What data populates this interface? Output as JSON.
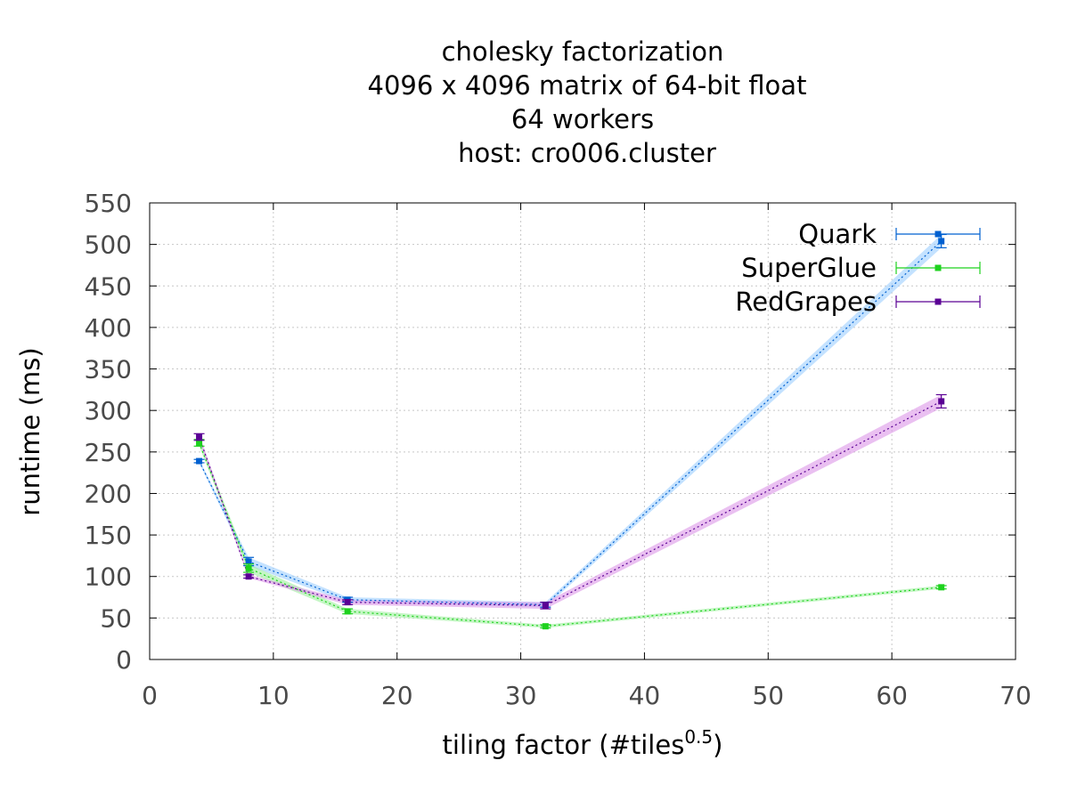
{
  "chart_data": {
    "type": "line",
    "title_lines": [
      "cholesky factorization",
      "4096 x 4096 matrix of 64-bit float",
      "64 workers",
      "host: cro006.cluster"
    ],
    "xlabel": "tiling factor (#tiles",
    "xlabel_superscript": "0.5",
    "xlabel_suffix": ")",
    "ylabel": "runtime (ms)",
    "xlim": [
      0,
      70
    ],
    "ylim": [
      0,
      550
    ],
    "xticks": [
      0,
      10,
      20,
      30,
      40,
      50,
      60,
      70
    ],
    "yticks": [
      0,
      50,
      100,
      150,
      200,
      250,
      300,
      350,
      400,
      450,
      500,
      550
    ],
    "grid": true,
    "legend_position": "top-right",
    "series": [
      {
        "name": "Quark",
        "color": "#0060d0",
        "band_color": "#9ccfff",
        "x": [
          4,
          8,
          16,
          32,
          64
        ],
        "y": [
          239,
          118,
          72,
          66,
          504
        ],
        "err": [
          2,
          5,
          3,
          3,
          8
        ]
      },
      {
        "name": "SuperGlue",
        "color": "#1ed21e",
        "band_color": "#9ff09f",
        "x": [
          4,
          8,
          16,
          32,
          64
        ],
        "y": [
          261,
          110,
          58,
          40,
          87
        ],
        "err": [
          4,
          5,
          3,
          2,
          2
        ]
      },
      {
        "name": "RedGrapes",
        "color": "#5a0094",
        "band_color": "#dc96e8",
        "x": [
          4,
          8,
          16,
          32,
          64
        ],
        "y": [
          268,
          100,
          69,
          65,
          311
        ],
        "err": [
          4,
          2,
          3,
          4,
          8
        ]
      }
    ]
  }
}
